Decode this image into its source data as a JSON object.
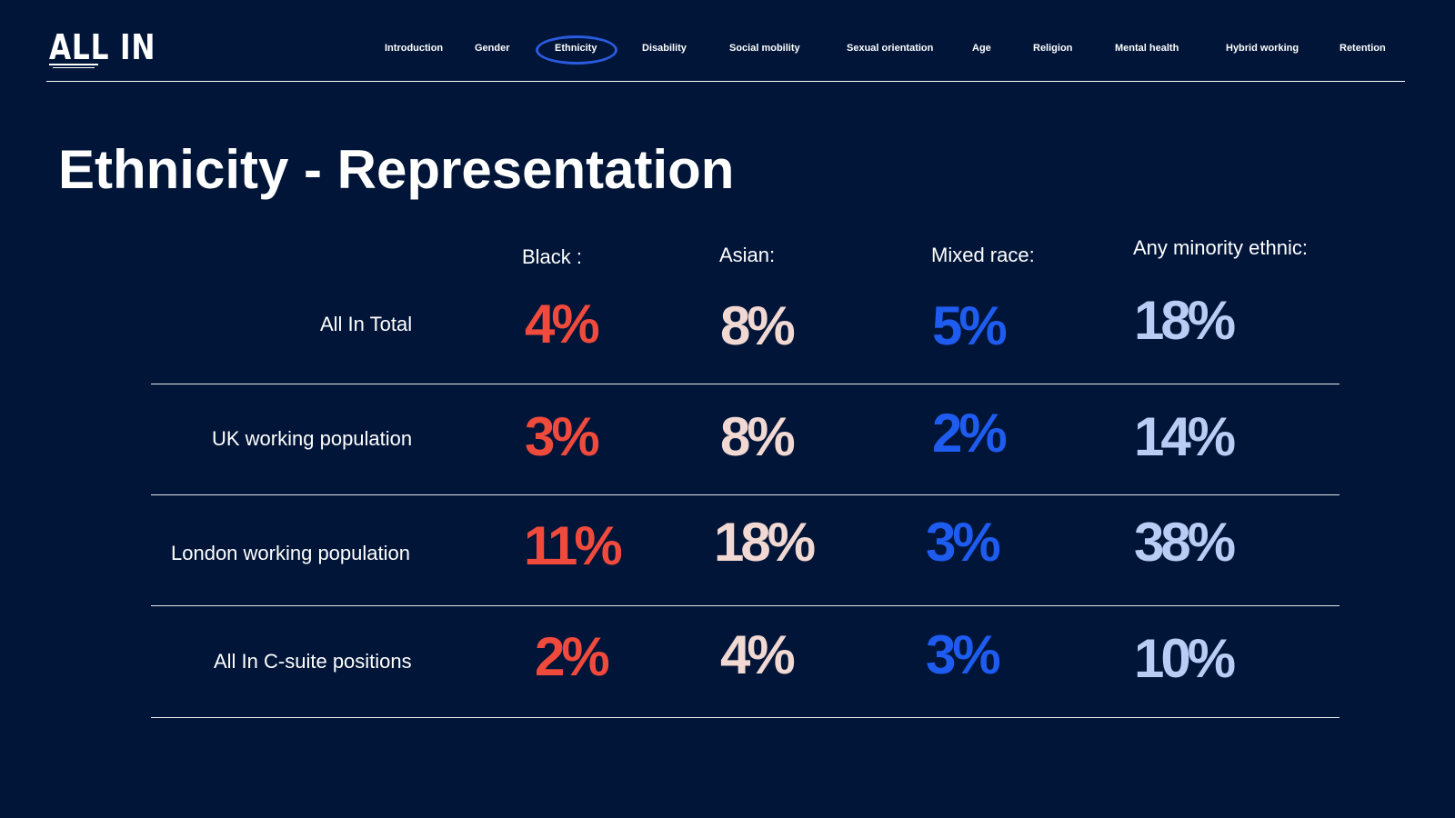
{
  "brand": {
    "logo_text": "ALL IN"
  },
  "nav": {
    "items": [
      "Introduction",
      "Gender",
      "Ethnicity",
      "Disability",
      "Social mobility",
      "Sexual orientation",
      "Age",
      "Religion",
      "Mental health",
      "Hybrid working",
      "Retention"
    ],
    "active": "Ethnicity"
  },
  "page": {
    "title": "Ethnicity - Representation"
  },
  "table": {
    "columns": [
      "Black :",
      "Asian:",
      "Mixed race:",
      "Any minority ethnic:"
    ],
    "rows": [
      {
        "label": "All In Total",
        "values": [
          "4%",
          "8%",
          "5%",
          "18%"
        ]
      },
      {
        "label": "UK working population",
        "values": [
          "3%",
          "8%",
          "2%",
          "14%"
        ]
      },
      {
        "label": "London working population",
        "values": [
          "11%",
          "18%",
          "3%",
          "38%"
        ]
      },
      {
        "label": "All In C-suite positions",
        "values": [
          "2%",
          "4%",
          "3%",
          "10%"
        ]
      }
    ]
  },
  "colors": {
    "background": "#001538",
    "black_column": "#f04a3c",
    "asian_column": "#f2d8d2",
    "mixed_race_column": "#1e5cf0",
    "any_minority_column": "#b8ccf4",
    "active_nav_circle": "#2a5bdf"
  }
}
